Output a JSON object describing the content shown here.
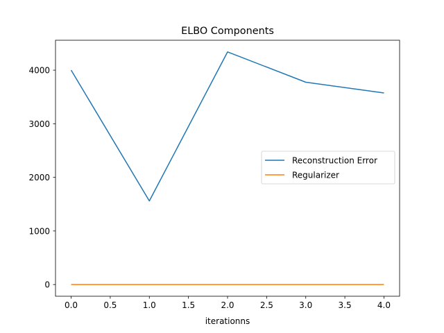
{
  "chart_data": {
    "type": "line",
    "title": "ELBO Components",
    "xlabel": "iterationns",
    "ylabel": "",
    "x": [
      0,
      1,
      2,
      3,
      4
    ],
    "series": [
      {
        "name": "Reconstruction Error",
        "color": "#1f77b4",
        "values": [
          4000,
          1560,
          4340,
          3775,
          3575
        ]
      },
      {
        "name": "Regularizer",
        "color": "#ff7f0e",
        "values": [
          1,
          1,
          1,
          1,
          1
        ]
      }
    ],
    "xlim": [
      -0.2,
      4.2
    ],
    "ylim": [
      -218,
      4558
    ],
    "xticks": [
      0.0,
      0.5,
      1.0,
      1.5,
      2.0,
      2.5,
      3.0,
      3.5,
      4.0
    ],
    "xtick_labels": [
      "0.0",
      "0.5",
      "1.0",
      "1.5",
      "2.0",
      "2.5",
      "3.0",
      "3.5",
      "4.0"
    ],
    "yticks": [
      0,
      1000,
      2000,
      3000,
      4000
    ],
    "ytick_labels": [
      "0",
      "1000",
      "2000",
      "3000",
      "4000"
    ],
    "grid": false,
    "legend_position": "center-right"
  }
}
